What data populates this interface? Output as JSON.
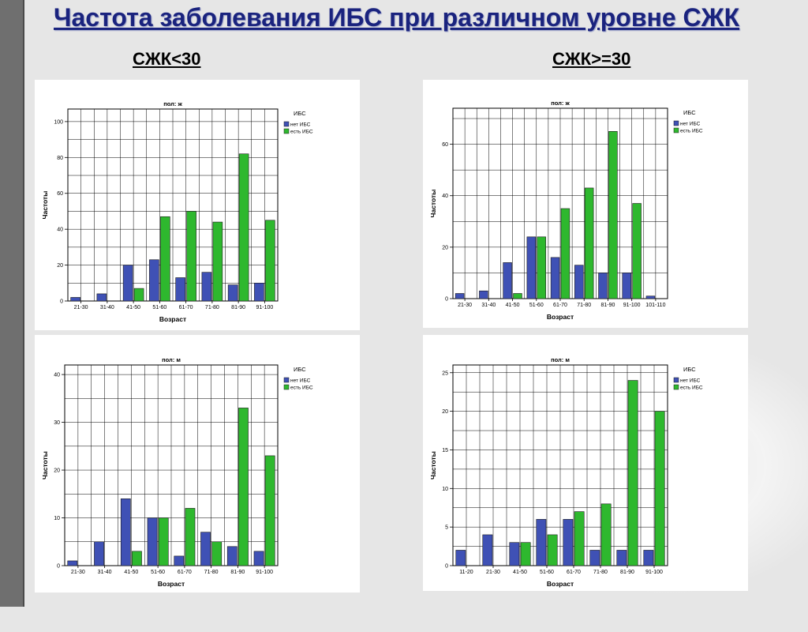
{
  "slide": {
    "title": "Частота заболевания ИБС при различном уровне СЖК",
    "col_left": "СЖК<30",
    "col_right": "СЖК>=30"
  },
  "colors": {
    "no_ibs": "#3f51b5",
    "ibs": "#2eb82e",
    "title": "#1a237e"
  },
  "chart_data": [
    {
      "type": "bar",
      "title": "пол: ж",
      "xlabel": "Возраст",
      "ylabel": "Частоты",
      "legend_title": "ИБС",
      "legend_position": "top-right",
      "grid": true,
      "categories": [
        "21-30",
        "31-40",
        "41-50",
        "51-60",
        "61-70",
        "71-80",
        "81-90",
        "91-100"
      ],
      "ylim": [
        0,
        107
      ],
      "yticks": [
        0,
        20,
        40,
        60,
        80,
        100
      ],
      "series": [
        {
          "name": "нет ИБС",
          "values": [
            2,
            4,
            20,
            23,
            13,
            16,
            9,
            10
          ]
        },
        {
          "name": "есть ИБС",
          "values": [
            0,
            0,
            7,
            47,
            50,
            44,
            82,
            45
          ]
        }
      ]
    },
    {
      "type": "bar",
      "title": "пол: ж",
      "xlabel": "Возраст",
      "ylabel": "Частоты",
      "legend_title": "ИБС",
      "legend_position": "top-right",
      "grid": true,
      "categories": [
        "21-30",
        "31-40",
        "41-50",
        "51-60",
        "61-70",
        "71-80",
        "81-90",
        "91-100",
        "101-110"
      ],
      "ylim": [
        0,
        74
      ],
      "yticks": [
        0,
        20,
        40,
        60
      ],
      "series": [
        {
          "name": "нет ИБС",
          "values": [
            2,
            3,
            14,
            24,
            16,
            13,
            10,
            10,
            1
          ]
        },
        {
          "name": "есть ИБС",
          "values": [
            0,
            0,
            2,
            24,
            35,
            43,
            65,
            37,
            0
          ]
        }
      ]
    },
    {
      "type": "bar",
      "title": "пол: м",
      "xlabel": "Возраст",
      "ylabel": "Частоты",
      "legend_title": "ИБС",
      "legend_position": "top-right",
      "grid": true,
      "categories": [
        "21-30",
        "31-40",
        "41-50",
        "51-60",
        "61-70",
        "71-80",
        "81-90",
        "91-100"
      ],
      "ylim": [
        0,
        42
      ],
      "yticks": [
        0,
        10,
        20,
        30,
        40
      ],
      "series": [
        {
          "name": "нет ИБС",
          "values": [
            1,
            5,
            14,
            10,
            2,
            7,
            4,
            3
          ]
        },
        {
          "name": "есть ИБС",
          "values": [
            0,
            0,
            3,
            10,
            12,
            5,
            33,
            23
          ]
        }
      ]
    },
    {
      "type": "bar",
      "title": "пол: м",
      "xlabel": "Возраст",
      "ylabel": "Частоты",
      "legend_title": "ИБС",
      "legend_position": "top-right",
      "grid": true,
      "categories": [
        "11-20",
        "21-30",
        "41-50",
        "51-60",
        "61-70",
        "71-80",
        "81-90",
        "91-100"
      ],
      "ylim": [
        0,
        26
      ],
      "yticks": [
        0,
        5,
        10,
        15,
        20,
        25
      ],
      "series": [
        {
          "name": "нет ИБС",
          "values": [
            2,
            4,
            3,
            6,
            6,
            2,
            2,
            2
          ]
        },
        {
          "name": "есть ИБС",
          "values": [
            0,
            0,
            3,
            4,
            7,
            8,
            24,
            20
          ]
        }
      ]
    }
  ]
}
